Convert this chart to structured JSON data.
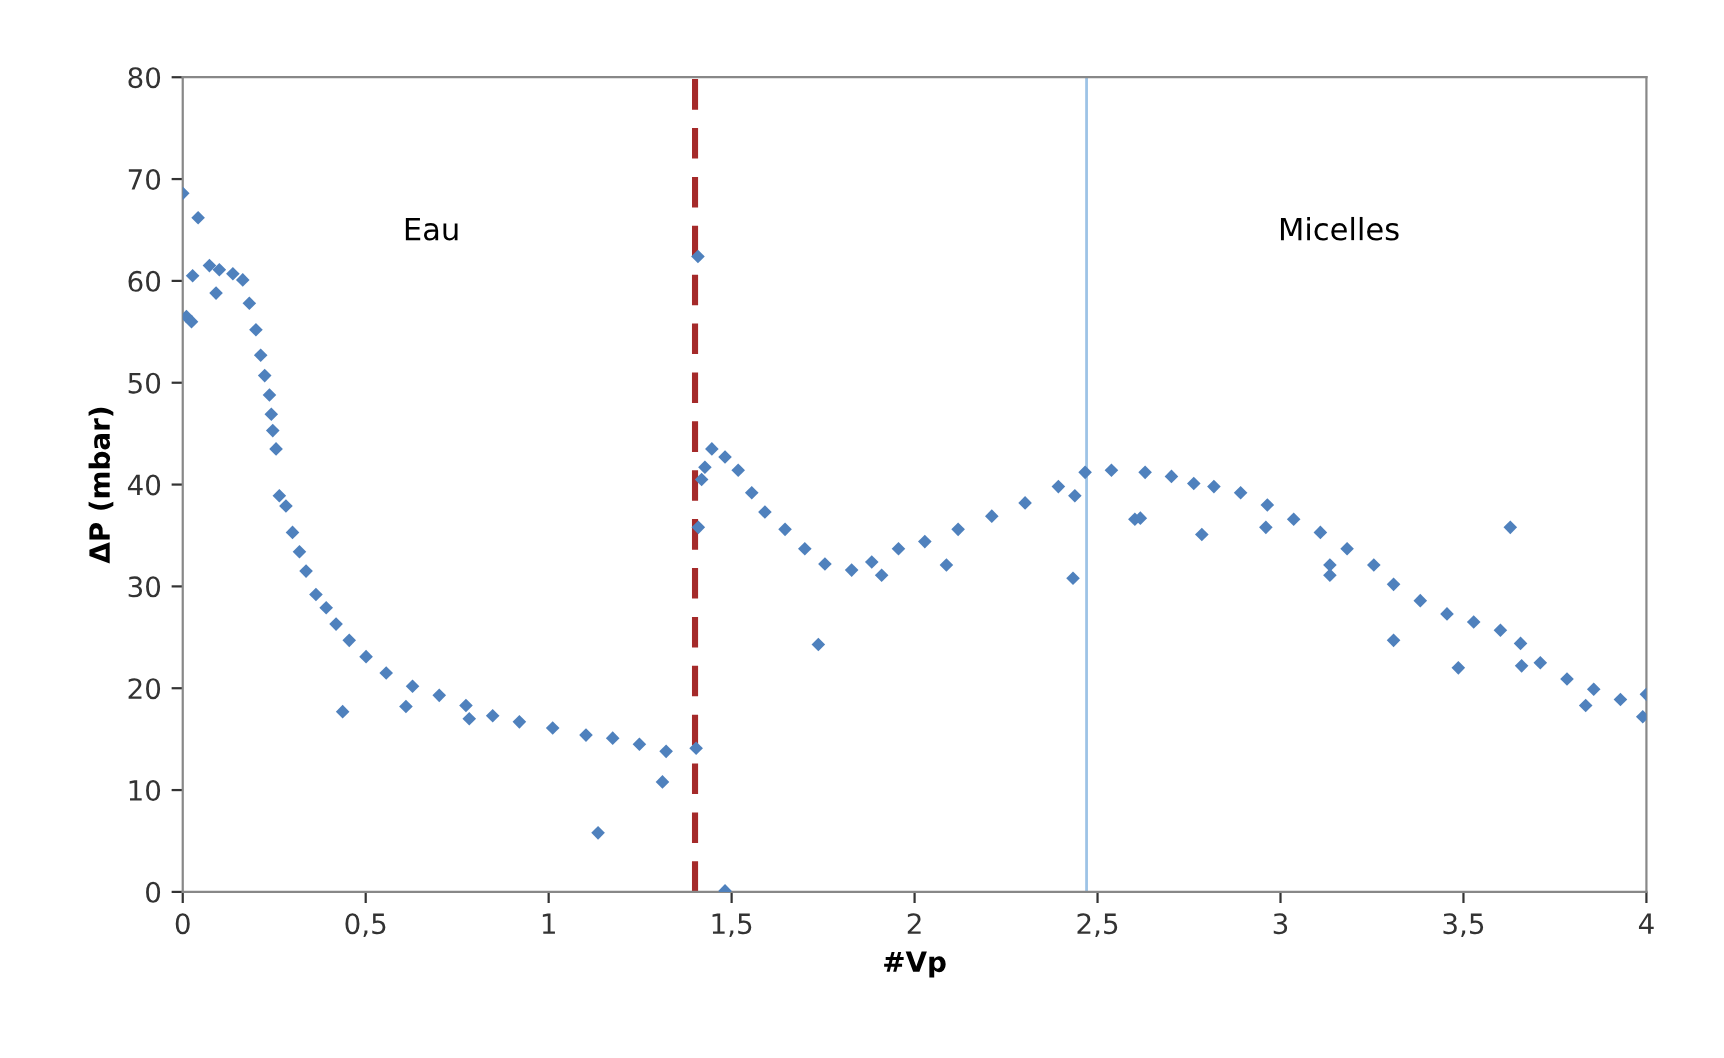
{
  "chart_data": {
    "type": "scatter",
    "xlabel": "#Vp",
    "ylabel": "ΔP (mbar)",
    "annotations": [
      "Eau",
      "Micelles"
    ],
    "xlim": [
      0,
      4
    ],
    "ylim": [
      0,
      80
    ],
    "xticks": [
      0,
      {
        "value": 0.5,
        "label": "0,5"
      },
      1,
      {
        "value": 1.5,
        "label": "1,5"
      },
      2,
      {
        "value": 2.5,
        "label": "2,5"
      },
      3,
      {
        "value": 3.5,
        "label": "3,5"
      },
      4
    ],
    "yticks": [
      0,
      10,
      20,
      30,
      40,
      50,
      60,
      70,
      80
    ],
    "grid": false,
    "marker": "diamond",
    "ref_lines": [
      {
        "axis": "x",
        "value": 1.4,
        "color": "#a52a2a",
        "line_style": "dashed"
      },
      {
        "axis": "x",
        "value": 2.47,
        "color": "#9dc3e6",
        "line_style": "solid"
      }
    ],
    "series": [
      {
        "color": "#4f81bd",
        "x": [
          0,
          0.042,
          0.01,
          0.024,
          0.027,
          0.073,
          0.1,
          0.091,
          0.137,
          0.164,
          0.182,
          0.2,
          0.213,
          0.224,
          0.237,
          0.242,
          0.246,
          0.255,
          0.264,
          0.282,
          0.3,
          0.319,
          0.337,
          0.364,
          0.392,
          0.419,
          0.455,
          0.501,
          0.556,
          0.628,
          0.701,
          0.774,
          0.847,
          0.92,
          1.011,
          1.102,
          1.175,
          1.248,
          1.321,
          1.403,
          0.437,
          0.61,
          0.783,
          1.135,
          1.311,
          1.408,
          1.409,
          1.418,
          1.427,
          1.446,
          1.482,
          1.518,
          1.555,
          1.591,
          1.646,
          1.7,
          1.755,
          1.828,
          1.883,
          1.956,
          2.028,
          2.119,
          2.211,
          2.302,
          2.393,
          2.466,
          2.538,
          2.63,
          2.702,
          1.482,
          1.737,
          1.91,
          2.087,
          2.433,
          2.438,
          2.602,
          2.763,
          2.818,
          2.891,
          2.964,
          3.036,
          3.109,
          3.182,
          3.255,
          3.309,
          3.382,
          3.455,
          3.528,
          3.601,
          3.656,
          3.71,
          3.783,
          3.856,
          3.929,
          4.0,
          2.617,
          2.785,
          2.96,
          3.135,
          3.135,
          3.309,
          3.486,
          3.628,
          3.659,
          3.834,
          3.99
        ],
        "values": [
          68.6,
          66.2,
          56.5,
          56.0,
          60.5,
          61.5,
          61.1,
          58.8,
          60.7,
          60.1,
          57.8,
          55.2,
          52.7,
          50.7,
          48.8,
          46.9,
          45.3,
          43.5,
          38.9,
          37.9,
          35.3,
          33.4,
          31.5,
          29.2,
          27.9,
          26.3,
          24.7,
          23.1,
          21.5,
          20.2,
          19.3,
          18.3,
          17.3,
          16.7,
          16.1,
          15.4,
          15.1,
          14.5,
          13.8,
          14.1,
          17.7,
          18.2,
          17.0,
          5.8,
          10.8,
          62.4,
          35.8,
          40.5,
          41.7,
          43.5,
          42.7,
          41.4,
          39.2,
          37.3,
          35.6,
          33.7,
          32.2,
          31.6,
          32.4,
          33.7,
          34.4,
          35.6,
          36.9,
          38.2,
          39.8,
          41.2,
          41.4,
          41.2,
          40.8,
          0.1,
          24.3,
          31.1,
          32.1,
          30.8,
          38.9,
          36.6,
          40.1,
          39.8,
          39.2,
          38.0,
          36.6,
          35.3,
          33.7,
          32.1,
          30.2,
          28.6,
          27.3,
          26.5,
          25.7,
          24.4,
          22.5,
          20.9,
          19.9,
          18.9,
          19.4,
          36.7,
          35.1,
          35.8,
          32.1,
          31.1,
          24.7,
          22.0,
          35.8,
          22.2,
          18.3,
          17.2
        ]
      }
    ]
  }
}
